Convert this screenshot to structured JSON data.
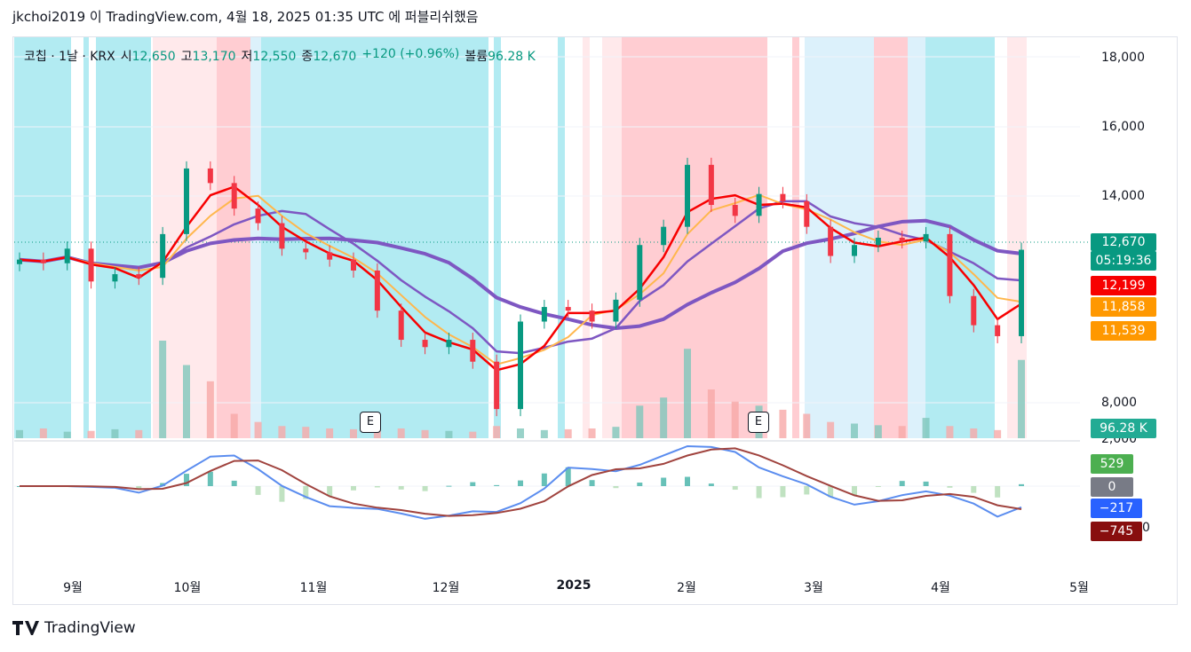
{
  "header": "jkchoi2019 이 TradingView.com, 4월 18, 2025 01:35 UTC 에 퍼블리쉬했음",
  "legend": {
    "symbol": "코칩 · 1날 · KRX",
    "open_label": "시",
    "open": "12,650",
    "high_label": "고",
    "high": "13,170",
    "low_label": "저",
    "low": "12,550",
    "close_label": "종",
    "close": "12,670",
    "change": "+120 (+0.96%)",
    "volume_label": "볼륨",
    "volume": "96.28 K"
  },
  "price_axis": [
    "18,000",
    "16,000",
    "14,000",
    "8,000"
  ],
  "macd_axis": [
    "2,000"
  ],
  "macd_axis_partial": "0",
  "time_axis": [
    "9월",
    "10월",
    "11월",
    "12월",
    "2025",
    "2월",
    "3월",
    "4월",
    "5월"
  ],
  "tags": {
    "price": "12,670",
    "countdown": "05:19:36",
    "ma_red": "12,199",
    "ma_orange1": "11,858",
    "ma_orange2": "11,539",
    "volume": "96.28 K",
    "hist": "529",
    "zero": "0",
    "macd": "−217",
    "signal": "−745"
  },
  "earnings_marker": "E",
  "footer_brand": "TradingView",
  "colors": {
    "up": "#089981",
    "down": "#f23645",
    "ma_purple": "#7e57c2",
    "ma_red": "#f70000",
    "ma_orange": "#ffb74d",
    "bg_blue": "#4dd0e1",
    "bg_red": "#ef9a9a",
    "macd": "#5b8def",
    "signal": "#a0433e"
  },
  "chart_data": {
    "type": "candlestick",
    "ylim": [
      7500,
      18500
    ],
    "x": [
      "2024-08-27",
      "2024-08-30",
      "2024-09-04",
      "2024-09-09",
      "2024-09-13",
      "2024-09-20",
      "2024-09-25",
      "2024-09-30",
      "2024-10-04",
      "2024-10-10",
      "2024-10-16",
      "2024-10-21",
      "2024-10-25",
      "2024-10-31",
      "2024-11-06",
      "2024-11-12",
      "2024-11-18",
      "2024-11-22",
      "2024-11-28",
      "2024-12-04",
      "2024-12-10",
      "2024-12-16",
      "2024-12-20",
      "2024-12-27",
      "2025-01-03",
      "2025-01-09",
      "2025-01-15",
      "2025-01-21",
      "2025-01-27",
      "2025-02-03",
      "2025-02-07",
      "2025-02-13",
      "2025-02-19",
      "2025-02-25",
      "2025-03-04",
      "2025-03-10",
      "2025-03-14",
      "2025-03-20",
      "2025-03-26",
      "2025-04-01",
      "2025-04-07",
      "2025-04-11",
      "2025-04-17"
    ],
    "close": [
      12400,
      12300,
      12700,
      11800,
      12000,
      11900,
      13100,
      14900,
      14500,
      13800,
      13400,
      12700,
      12600,
      12400,
      12100,
      11000,
      10200,
      10000,
      10200,
      9600,
      8300,
      10700,
      11100,
      11000,
      10700,
      11300,
      12800,
      13300,
      15000,
      13900,
      13600,
      14200,
      14000,
      13300,
      12500,
      12800,
      13000,
      12900,
      13100,
      11400,
      10600,
      10300,
      12670
    ],
    "volume_k": [
      10,
      12,
      8,
      9,
      11,
      10,
      120,
      90,
      70,
      30,
      20,
      15,
      14,
      12,
      11,
      13,
      12,
      10,
      9,
      8,
      15,
      12,
      10,
      11,
      12,
      14,
      40,
      50,
      110,
      60,
      45,
      40,
      35,
      30,
      20,
      18,
      16,
      15,
      25,
      15,
      12,
      10,
      96.28
    ],
    "series": [
      {
        "name": "MA red",
        "value_last": 12199
      },
      {
        "name": "MA orange 1",
        "value_last": 11858
      },
      {
        "name": "MA orange 2",
        "value_last": 11539
      },
      {
        "name": "MACD",
        "value_last": -217
      },
      {
        "name": "Signal",
        "value_last": -745
      },
      {
        "name": "Histogram",
        "value_last": 529
      }
    ]
  }
}
